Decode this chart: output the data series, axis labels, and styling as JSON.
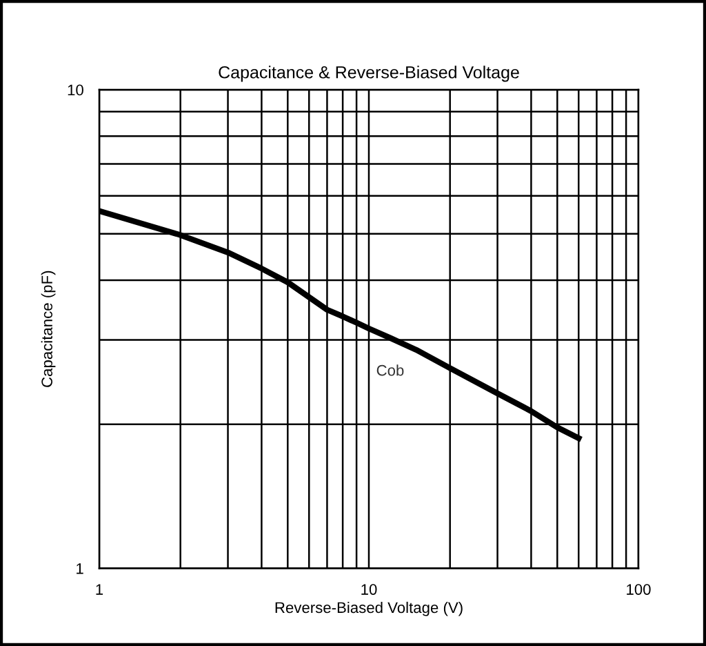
{
  "chart_data": {
    "type": "line",
    "title": "Capacitance & Reverse-Biased Voltage",
    "xlabel": "Reverse-Biased Voltage (V)",
    "ylabel": "Capacitance (pF)",
    "log": "xy",
    "grid": true,
    "legend": false,
    "marker": "none",
    "line_style": "solid",
    "x": [
      1,
      2,
      3,
      4,
      5,
      7,
      8,
      9,
      10,
      12,
      15,
      20,
      30,
      40,
      50,
      60
    ],
    "series": [
      {
        "name": "Cob",
        "color": "#000000",
        "values": [
          5.58,
          4.97,
          4.57,
          4.23,
          3.96,
          3.47,
          3.36,
          3.26,
          3.17,
          3.03,
          2.86,
          2.62,
          2.32,
          2.13,
          1.97,
          1.87
        ]
      }
    ],
    "xlim": [
      1,
      100
    ],
    "ylim": [
      1,
      10
    ],
    "xticks": [
      1,
      {
        "value": 2,
        "label": null
      },
      {
        "value": 3,
        "label": null
      },
      {
        "value": 4,
        "label": null
      },
      {
        "value": 5,
        "label": null
      },
      {
        "value": 6,
        "label": null
      },
      {
        "value": 7,
        "label": null
      },
      {
        "value": 8,
        "label": null
      },
      {
        "value": 9,
        "label": null
      },
      10,
      {
        "value": 20,
        "label": null
      },
      {
        "value": 30,
        "label": null
      },
      {
        "value": 40,
        "label": null
      },
      {
        "value": 50,
        "label": null
      },
      {
        "value": 60,
        "label": null
      },
      {
        "value": 70,
        "label": null
      },
      {
        "value": 80,
        "label": null
      },
      {
        "value": 90,
        "label": null
      },
      100
    ],
    "yticks": [
      1,
      {
        "value": 2,
        "label": null
      },
      {
        "value": 3,
        "label": null
      },
      {
        "value": 4,
        "label": null
      },
      {
        "value": 5,
        "label": null
      },
      {
        "value": 6,
        "label": null
      },
      {
        "value": 7,
        "label": null
      },
      {
        "value": 8,
        "label": null
      },
      {
        "value": 9,
        "label": null
      },
      10
    ]
  }
}
